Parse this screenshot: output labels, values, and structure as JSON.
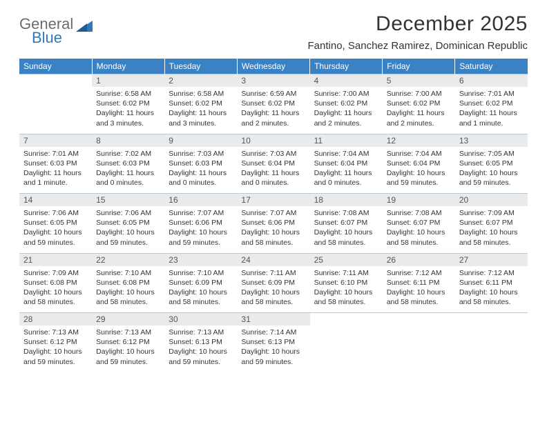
{
  "brand": {
    "word1": "General",
    "word2": "Blue",
    "text_color": "#6b6b6b",
    "accent_color": "#2f77bc"
  },
  "title": "December 2025",
  "location": "Fantino, Sanchez Ramirez, Dominican Republic",
  "day_headers": [
    "Sunday",
    "Monday",
    "Tuesday",
    "Wednesday",
    "Thursday",
    "Friday",
    "Saturday"
  ],
  "header_bg": "#3a82c4",
  "header_fg": "#ffffff",
  "daynum_bg": "#e9eaeb",
  "border_color": "#b9c6d3",
  "weeks": [
    {
      "nums": [
        "",
        "1",
        "2",
        "3",
        "4",
        "5",
        "6"
      ],
      "cells": [
        {
          "lines": []
        },
        {
          "lines": [
            "Sunrise: 6:58 AM",
            "Sunset: 6:02 PM",
            "Daylight: 11 hours",
            "and 3 minutes."
          ]
        },
        {
          "lines": [
            "Sunrise: 6:58 AM",
            "Sunset: 6:02 PM",
            "Daylight: 11 hours",
            "and 3 minutes."
          ]
        },
        {
          "lines": [
            "Sunrise: 6:59 AM",
            "Sunset: 6:02 PM",
            "Daylight: 11 hours",
            "and 2 minutes."
          ]
        },
        {
          "lines": [
            "Sunrise: 7:00 AM",
            "Sunset: 6:02 PM",
            "Daylight: 11 hours",
            "and 2 minutes."
          ]
        },
        {
          "lines": [
            "Sunrise: 7:00 AM",
            "Sunset: 6:02 PM",
            "Daylight: 11 hours",
            "and 2 minutes."
          ]
        },
        {
          "lines": [
            "Sunrise: 7:01 AM",
            "Sunset: 6:02 PM",
            "Daylight: 11 hours",
            "and 1 minute."
          ]
        }
      ]
    },
    {
      "nums": [
        "7",
        "8",
        "9",
        "10",
        "11",
        "12",
        "13"
      ],
      "cells": [
        {
          "lines": [
            "Sunrise: 7:01 AM",
            "Sunset: 6:03 PM",
            "Daylight: 11 hours",
            "and 1 minute."
          ]
        },
        {
          "lines": [
            "Sunrise: 7:02 AM",
            "Sunset: 6:03 PM",
            "Daylight: 11 hours",
            "and 0 minutes."
          ]
        },
        {
          "lines": [
            "Sunrise: 7:03 AM",
            "Sunset: 6:03 PM",
            "Daylight: 11 hours",
            "and 0 minutes."
          ]
        },
        {
          "lines": [
            "Sunrise: 7:03 AM",
            "Sunset: 6:04 PM",
            "Daylight: 11 hours",
            "and 0 minutes."
          ]
        },
        {
          "lines": [
            "Sunrise: 7:04 AM",
            "Sunset: 6:04 PM",
            "Daylight: 11 hours",
            "and 0 minutes."
          ]
        },
        {
          "lines": [
            "Sunrise: 7:04 AM",
            "Sunset: 6:04 PM",
            "Daylight: 10 hours",
            "and 59 minutes."
          ]
        },
        {
          "lines": [
            "Sunrise: 7:05 AM",
            "Sunset: 6:05 PM",
            "Daylight: 10 hours",
            "and 59 minutes."
          ]
        }
      ]
    },
    {
      "nums": [
        "14",
        "15",
        "16",
        "17",
        "18",
        "19",
        "20"
      ],
      "cells": [
        {
          "lines": [
            "Sunrise: 7:06 AM",
            "Sunset: 6:05 PM",
            "Daylight: 10 hours",
            "and 59 minutes."
          ]
        },
        {
          "lines": [
            "Sunrise: 7:06 AM",
            "Sunset: 6:05 PM",
            "Daylight: 10 hours",
            "and 59 minutes."
          ]
        },
        {
          "lines": [
            "Sunrise: 7:07 AM",
            "Sunset: 6:06 PM",
            "Daylight: 10 hours",
            "and 59 minutes."
          ]
        },
        {
          "lines": [
            "Sunrise: 7:07 AM",
            "Sunset: 6:06 PM",
            "Daylight: 10 hours",
            "and 58 minutes."
          ]
        },
        {
          "lines": [
            "Sunrise: 7:08 AM",
            "Sunset: 6:07 PM",
            "Daylight: 10 hours",
            "and 58 minutes."
          ]
        },
        {
          "lines": [
            "Sunrise: 7:08 AM",
            "Sunset: 6:07 PM",
            "Daylight: 10 hours",
            "and 58 minutes."
          ]
        },
        {
          "lines": [
            "Sunrise: 7:09 AM",
            "Sunset: 6:07 PM",
            "Daylight: 10 hours",
            "and 58 minutes."
          ]
        }
      ]
    },
    {
      "nums": [
        "21",
        "22",
        "23",
        "24",
        "25",
        "26",
        "27"
      ],
      "cells": [
        {
          "lines": [
            "Sunrise: 7:09 AM",
            "Sunset: 6:08 PM",
            "Daylight: 10 hours",
            "and 58 minutes."
          ]
        },
        {
          "lines": [
            "Sunrise: 7:10 AM",
            "Sunset: 6:08 PM",
            "Daylight: 10 hours",
            "and 58 minutes."
          ]
        },
        {
          "lines": [
            "Sunrise: 7:10 AM",
            "Sunset: 6:09 PM",
            "Daylight: 10 hours",
            "and 58 minutes."
          ]
        },
        {
          "lines": [
            "Sunrise: 7:11 AM",
            "Sunset: 6:09 PM",
            "Daylight: 10 hours",
            "and 58 minutes."
          ]
        },
        {
          "lines": [
            "Sunrise: 7:11 AM",
            "Sunset: 6:10 PM",
            "Daylight: 10 hours",
            "and 58 minutes."
          ]
        },
        {
          "lines": [
            "Sunrise: 7:12 AM",
            "Sunset: 6:11 PM",
            "Daylight: 10 hours",
            "and 58 minutes."
          ]
        },
        {
          "lines": [
            "Sunrise: 7:12 AM",
            "Sunset: 6:11 PM",
            "Daylight: 10 hours",
            "and 58 minutes."
          ]
        }
      ]
    },
    {
      "nums": [
        "28",
        "29",
        "30",
        "31",
        "",
        "",
        ""
      ],
      "cells": [
        {
          "lines": [
            "Sunrise: 7:13 AM",
            "Sunset: 6:12 PM",
            "Daylight: 10 hours",
            "and 59 minutes."
          ]
        },
        {
          "lines": [
            "Sunrise: 7:13 AM",
            "Sunset: 6:12 PM",
            "Daylight: 10 hours",
            "and 59 minutes."
          ]
        },
        {
          "lines": [
            "Sunrise: 7:13 AM",
            "Sunset: 6:13 PM",
            "Daylight: 10 hours",
            "and 59 minutes."
          ]
        },
        {
          "lines": [
            "Sunrise: 7:14 AM",
            "Sunset: 6:13 PM",
            "Daylight: 10 hours",
            "and 59 minutes."
          ]
        },
        {
          "lines": []
        },
        {
          "lines": []
        },
        {
          "lines": []
        }
      ]
    }
  ]
}
